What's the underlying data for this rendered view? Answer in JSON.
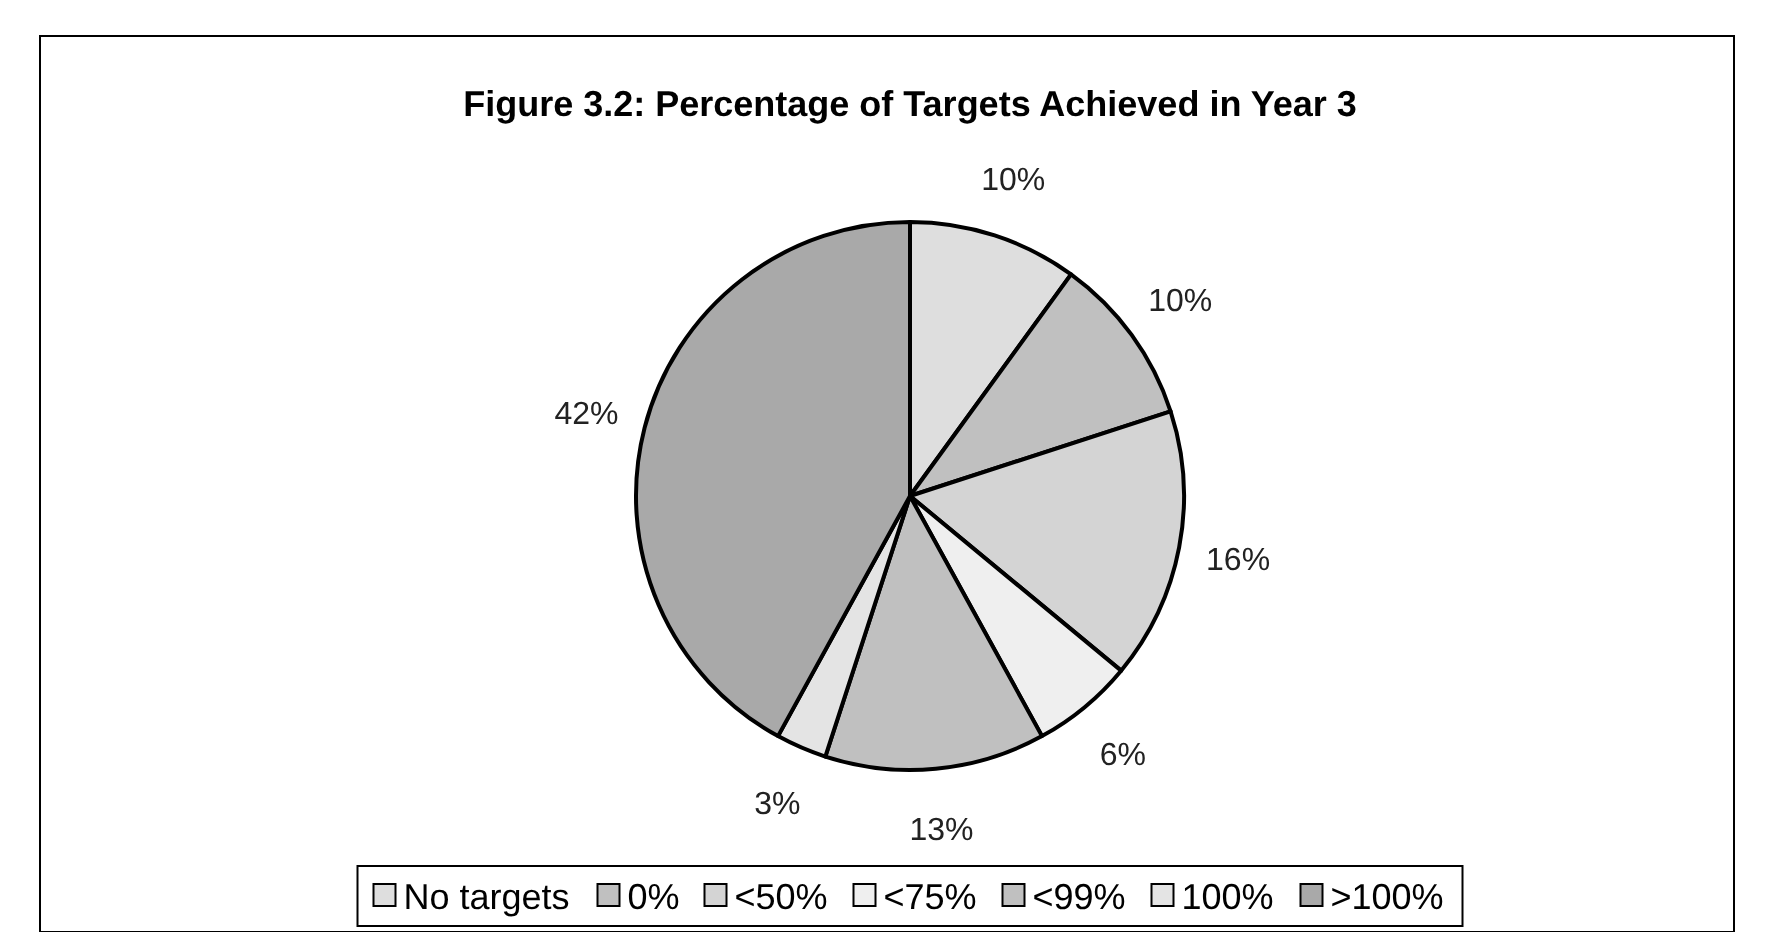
{
  "chart_data": {
    "type": "pie",
    "title": "Figure 3.2: Percentage of Targets Achieved in Year 3",
    "categories": [
      "No targets",
      "0%",
      "<50%",
      "<75%",
      "<99%",
      "100%",
      ">100%"
    ],
    "values": [
      10,
      10,
      16,
      6,
      13,
      3,
      42
    ],
    "colors": [
      "#dedede",
      "#c0c0c0",
      "#d4d4d4",
      "#efefef",
      "#c0c0c0",
      "#e4e4e4",
      "#a9a9a9"
    ],
    "value_labels": [
      "10%",
      "10%",
      "16%",
      "6%",
      "13%",
      "3%",
      "42%"
    ],
    "legend": "bottom"
  }
}
